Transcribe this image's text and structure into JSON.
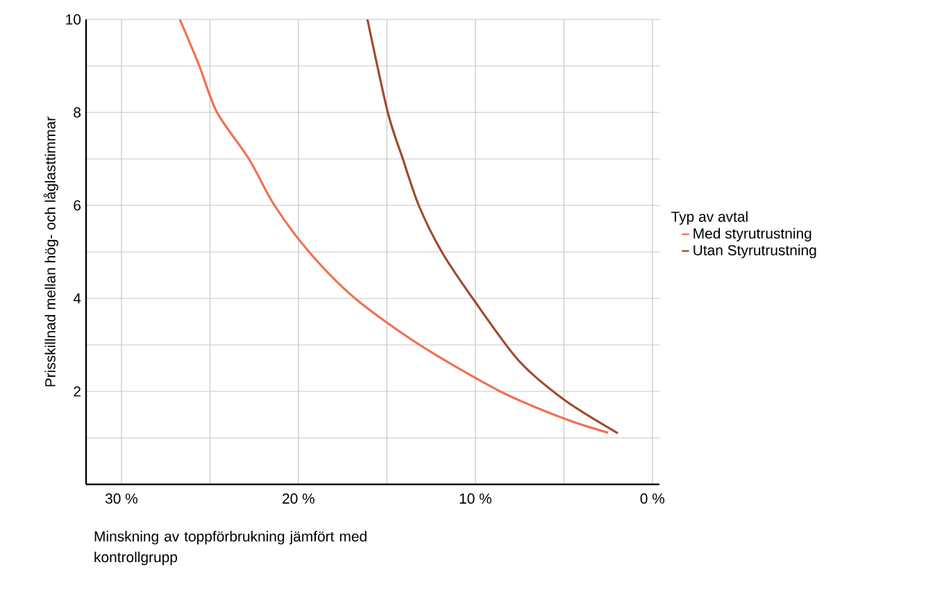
{
  "chart_data": {
    "type": "line",
    "xlabel": "Minskning av toppförbrukning jämfört med kontrollgrupp",
    "ylabel": "Prisskillnad mellan hög- och låglasttimmar",
    "legend_title": "Typ av avtal",
    "xlim": [
      32,
      -0.4
    ],
    "ylim": [
      0,
      10
    ],
    "xticks": [
      {
        "value": 30,
        "label": "30 %"
      },
      {
        "value": 25,
        "label": null
      },
      {
        "value": 20,
        "label": "20 %"
      },
      {
        "value": 15,
        "label": null
      },
      {
        "value": 10,
        "label": "10 %"
      },
      {
        "value": 5,
        "label": null
      },
      {
        "value": 0,
        "label": "0 %"
      }
    ],
    "yticks": [
      {
        "value": 1,
        "label": null
      },
      2,
      {
        "value": 3,
        "label": null
      },
      4,
      {
        "value": 5,
        "label": null
      },
      6,
      {
        "value": 7,
        "label": null
      },
      8,
      {
        "value": 9,
        "label": null
      },
      10
    ],
    "grid": true,
    "legend": "right",
    "series": [
      {
        "name": "Med styrutrustning",
        "color": "#f07050",
        "x": [
          26.7,
          25.6,
          24.6,
          22.8,
          21.35,
          19.4,
          16.8,
          13.15,
          8.6,
          4.95,
          2.5
        ],
        "values": [
          10,
          9,
          8,
          7,
          6,
          5,
          4,
          3,
          2,
          1.41,
          1.11
        ]
      },
      {
        "name": "Utan Styrutrustning",
        "color": "#a04a30",
        "x": [
          16.1,
          14.95,
          14.1,
          13.2,
          11.9,
          10.15,
          7.55,
          4.95,
          1.95
        ],
        "values": [
          10,
          8,
          7,
          6,
          5,
          4,
          2.66,
          1.81,
          1.1
        ]
      }
    ]
  }
}
